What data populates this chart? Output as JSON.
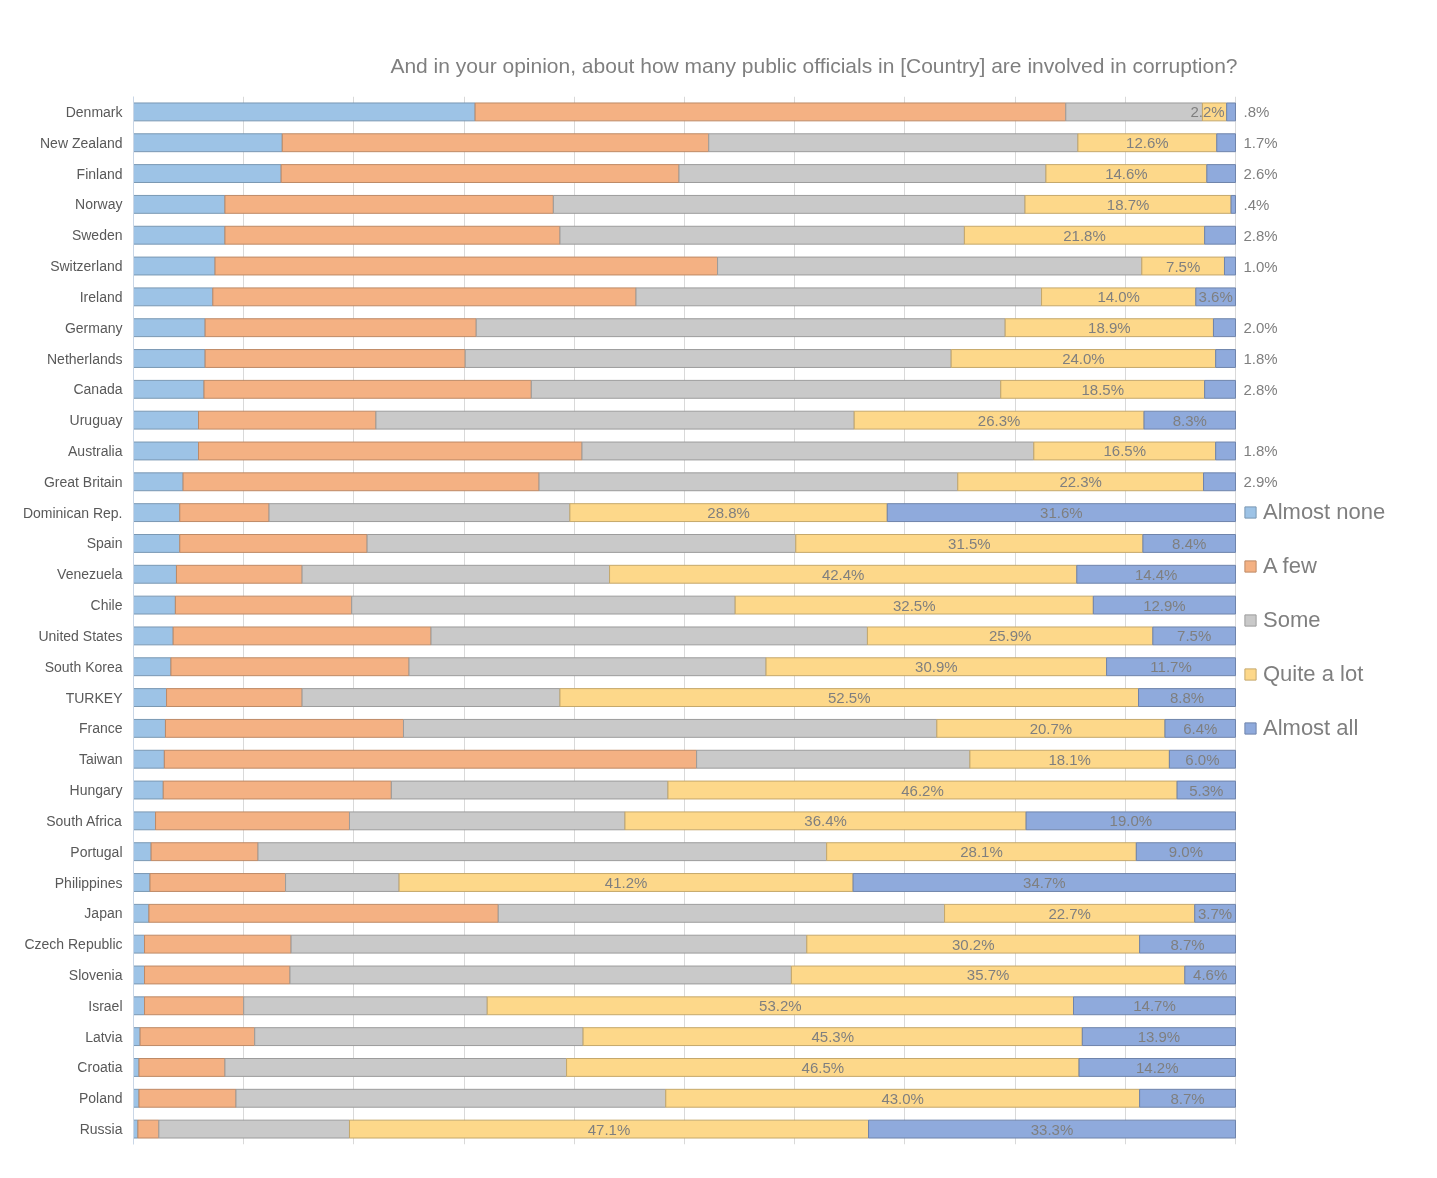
{
  "chart_data": {
    "type": "bar",
    "orientation": "horizontal",
    "stacked": true,
    "title": "And in your opinion, about how many public officials in [Country] are involved in corruption?",
    "categories": [
      "Denmark",
      "New Zealand",
      "Finland",
      "Norway",
      "Sweden",
      "Switzerland",
      "Ireland",
      "Germany",
      "Netherlands",
      "Canada",
      "Uruguay",
      "Australia",
      "Great Britain",
      "Dominican Rep.",
      "Spain",
      "Venezuela",
      "Chile",
      "United States",
      "South Korea",
      "TURKEY",
      "France",
      "Taiwan",
      "Hungary",
      "South Africa",
      "Portugal",
      "Philippines",
      "Japan",
      "Czech Republic",
      "Slovenia",
      "Israel",
      "Latvia",
      "Croatia",
      "Poland",
      "Russia"
    ],
    "series": [
      {
        "name": "Almost none",
        "color": "#9dc3e6",
        "values": [
          31.0,
          13.5,
          13.4,
          8.3,
          8.3,
          7.4,
          7.2,
          6.5,
          6.5,
          6.4,
          5.9,
          5.9,
          4.5,
          4.2,
          4.2,
          3.9,
          3.8,
          3.6,
          3.4,
          3.0,
          2.9,
          2.8,
          2.7,
          2.0,
          1.6,
          1.5,
          1.4,
          1.0,
          1.0,
          1.0,
          0.6,
          0.5,
          0.5,
          0.4
        ]
      },
      {
        "name": "A few",
        "color": "#f4b183",
        "values": [
          53.6,
          38.7,
          36.1,
          29.8,
          30.4,
          45.6,
          38.4,
          24.6,
          23.6,
          29.7,
          16.1,
          34.8,
          32.3,
          8.1,
          17.0,
          11.4,
          16.0,
          23.4,
          21.6,
          12.3,
          21.6,
          48.3,
          20.7,
          17.6,
          9.7,
          12.3,
          31.7,
          13.3,
          13.2,
          9.0,
          10.4,
          7.8,
          8.8,
          1.9
        ]
      },
      {
        "name": "Some",
        "color": "#c9c9c9",
        "values": [
          12.4,
          33.5,
          33.3,
          42.8,
          36.7,
          38.5,
          36.8,
          48.0,
          44.1,
          42.6,
          43.4,
          41.0,
          38.0,
          27.3,
          38.9,
          27.9,
          34.8,
          39.6,
          32.4,
          23.4,
          48.4,
          24.8,
          25.1,
          25.0,
          51.6,
          10.3,
          40.5,
          46.8,
          45.5,
          22.1,
          29.8,
          31.0,
          39.0,
          17.3
        ]
      },
      {
        "name": "Quite a lot",
        "color": "#fdd88a",
        "values": [
          2.2,
          12.6,
          14.6,
          18.7,
          21.8,
          7.5,
          14.0,
          18.9,
          24.0,
          18.5,
          26.3,
          16.5,
          22.3,
          28.8,
          31.5,
          42.4,
          32.5,
          25.9,
          30.9,
          52.5,
          20.7,
          18.1,
          46.2,
          36.4,
          28.1,
          41.2,
          22.7,
          30.2,
          35.7,
          53.2,
          45.3,
          46.5,
          43.0,
          47.1
        ],
        "value_labels": [
          "2.2%",
          "12.6%",
          "14.6%",
          "18.7%",
          "21.8%",
          "7.5%",
          "14.0%",
          "18.9%",
          "24.0%",
          "18.5%",
          "26.3%",
          "16.5%",
          "22.3%",
          "28.8%",
          "31.5%",
          "42.4%",
          "32.5%",
          "25.9%",
          "30.9%",
          "52.5%",
          "20.7%",
          "18.1%",
          "46.2%",
          "36.4%",
          "28.1%",
          "41.2%",
          "22.7%",
          "30.2%",
          "35.7%",
          "53.2%",
          "45.3%",
          "46.5%",
          "43.0%",
          "47.1%"
        ]
      },
      {
        "name": "Almost all",
        "color": "#8faadc",
        "values": [
          0.8,
          1.7,
          2.6,
          0.4,
          2.8,
          1.0,
          3.6,
          2.0,
          1.8,
          2.8,
          8.3,
          1.8,
          2.9,
          31.6,
          8.4,
          14.4,
          12.9,
          7.5,
          11.7,
          8.8,
          6.4,
          6.0,
          5.3,
          19.0,
          9.0,
          34.7,
          3.7,
          8.7,
          4.6,
          14.7,
          13.9,
          14.2,
          8.7,
          33.3
        ],
        "value_labels": [
          ".8%",
          "1.7%",
          "2.6%",
          ".4%",
          "2.8%",
          "1.0%",
          "3.6%",
          "2.0%",
          "1.8%",
          "2.8%",
          "8.3%",
          "1.8%",
          "2.9%",
          "31.6%",
          "8.4%",
          "14.4%",
          "12.9%",
          "7.5%",
          "11.7%",
          "8.8%",
          "6.4%",
          "6.0%",
          "5.3%",
          "19.0%",
          "9.0%",
          "34.7%",
          "3.7%",
          "8.7%",
          "4.6%",
          "14.7%",
          "13.9%",
          "14.2%",
          "8.7%",
          "33.3%"
        ]
      }
    ],
    "xlim": [
      0,
      100
    ],
    "xticks": [
      {
        "value": 0,
        "label": null
      },
      {
        "value": 10,
        "label": null
      },
      {
        "value": 20,
        "label": null
      },
      {
        "value": 30,
        "label": null
      },
      {
        "value": 40,
        "label": null
      },
      {
        "value": 50,
        "label": null
      },
      {
        "value": 60,
        "label": null
      },
      {
        "value": 70,
        "label": null
      },
      {
        "value": 80,
        "label": null
      },
      {
        "value": 90,
        "label": null
      },
      {
        "value": 100,
        "label": null
      }
    ],
    "tick_labels": "y",
    "grid": "x",
    "legend": "right"
  }
}
